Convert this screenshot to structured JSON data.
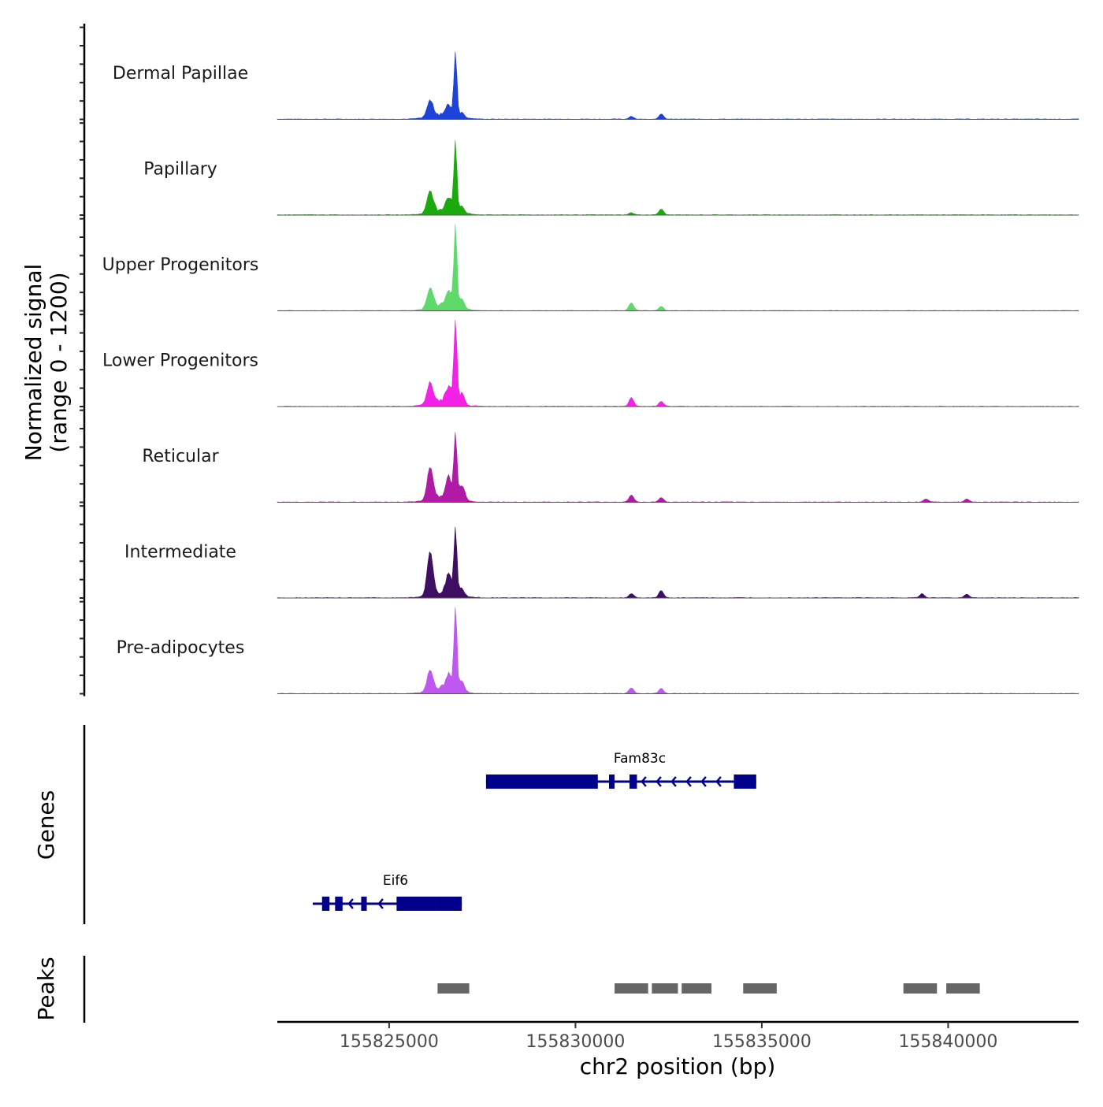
{
  "chart_data": {
    "type": "area",
    "region": {
      "chrom": "chr2",
      "start": 155822000,
      "end": 155843500
    },
    "y_axis_title_line1": "Normalized signal",
    "y_axis_title_line2": "(range 0 - 1200)",
    "y_range": [
      0,
      1200
    ],
    "x_axis_title": "chr2 position (bp)",
    "x_ticks": [
      155825000,
      155830000,
      155835000,
      155840000
    ],
    "x_tick_labels": [
      "155825000",
      "155830000",
      "155835000",
      "155840000"
    ],
    "tracks": [
      {
        "name": "Dermal Papillae",
        "color": "#1d43d9",
        "peaks": [
          [
            155826100,
            220
          ],
          [
            155826600,
            130
          ],
          [
            155826780,
            900
          ],
          [
            155826950,
            60
          ],
          [
            155831500,
            40
          ],
          [
            155832300,
            70
          ]
        ]
      },
      {
        "name": "Papillary",
        "color": "#1aaa0e",
        "peaks": [
          [
            155826100,
            300
          ],
          [
            155826600,
            180
          ],
          [
            155826780,
            960
          ],
          [
            155826950,
            90
          ],
          [
            155831500,
            30
          ],
          [
            155832300,
            80
          ]
        ]
      },
      {
        "name": "Upper Progenitors",
        "color": "#5ed96a",
        "peaks": [
          [
            155826100,
            280
          ],
          [
            155826600,
            220
          ],
          [
            155826780,
            1180
          ],
          [
            155826950,
            130
          ],
          [
            155831500,
            110
          ],
          [
            155832300,
            60
          ]
        ]
      },
      {
        "name": "Lower Progenitors",
        "color": "#f223e6",
        "peaks": [
          [
            155826100,
            300
          ],
          [
            155826600,
            200
          ],
          [
            155826780,
            1200
          ],
          [
            155826950,
            150
          ],
          [
            155831500,
            120
          ],
          [
            155832300,
            70
          ]
        ]
      },
      {
        "name": "Reticular",
        "color": "#b01aa6",
        "peaks": [
          [
            155826100,
            450
          ],
          [
            155826600,
            280
          ],
          [
            155826780,
            900
          ],
          [
            155826950,
            200
          ],
          [
            155831500,
            100
          ],
          [
            155832300,
            60
          ],
          [
            155839400,
            45
          ],
          [
            155840500,
            45
          ]
        ]
      },
      {
        "name": "Intermediate",
        "color": "#3e0e62",
        "peaks": [
          [
            155826100,
            600
          ],
          [
            155826600,
            250
          ],
          [
            155826780,
            920
          ],
          [
            155826950,
            100
          ],
          [
            155831500,
            55
          ],
          [
            155832300,
            100
          ],
          [
            155839300,
            60
          ],
          [
            155840500,
            50
          ]
        ]
      },
      {
        "name": "Pre-adipocytes",
        "color": "#bf58f0",
        "peaks": [
          [
            155826100,
            300
          ],
          [
            155826600,
            200
          ],
          [
            155826780,
            1200
          ],
          [
            155826950,
            150
          ],
          [
            155831500,
            80
          ],
          [
            155832300,
            70
          ]
        ]
      }
    ],
    "genes_axis_title": "Genes",
    "genes": [
      {
        "name": "Fam83c",
        "strand": "-",
        "start": 155827600,
        "end": 155834850,
        "row": 0,
        "color": "#00008b",
        "exons": [
          [
            155827600,
            155830600
          ],
          [
            155830900,
            155831050
          ],
          [
            155831450,
            155831650
          ],
          [
            155834250,
            155834850
          ]
        ]
      },
      {
        "name": "Eif6",
        "strand": "-",
        "start": 155822950,
        "end": 155826950,
        "row": 1,
        "color": "#00008b",
        "exons": [
          [
            155823200,
            155823400
          ],
          [
            155823550,
            155823750
          ],
          [
            155824250,
            155824400
          ],
          [
            155825200,
            155826250
          ],
          [
            155826250,
            155826950
          ]
        ]
      }
    ],
    "peaks_axis_title": "Peaks",
    "peak_color": "#666666",
    "peak_regions": [
      [
        155826300,
        155827150
      ],
      [
        155831050,
        155831950
      ],
      [
        155832050,
        155832750
      ],
      [
        155832850,
        155833650
      ],
      [
        155834500,
        155835400
      ],
      [
        155838800,
        155839700
      ],
      [
        155839950,
        155840850
      ]
    ]
  }
}
